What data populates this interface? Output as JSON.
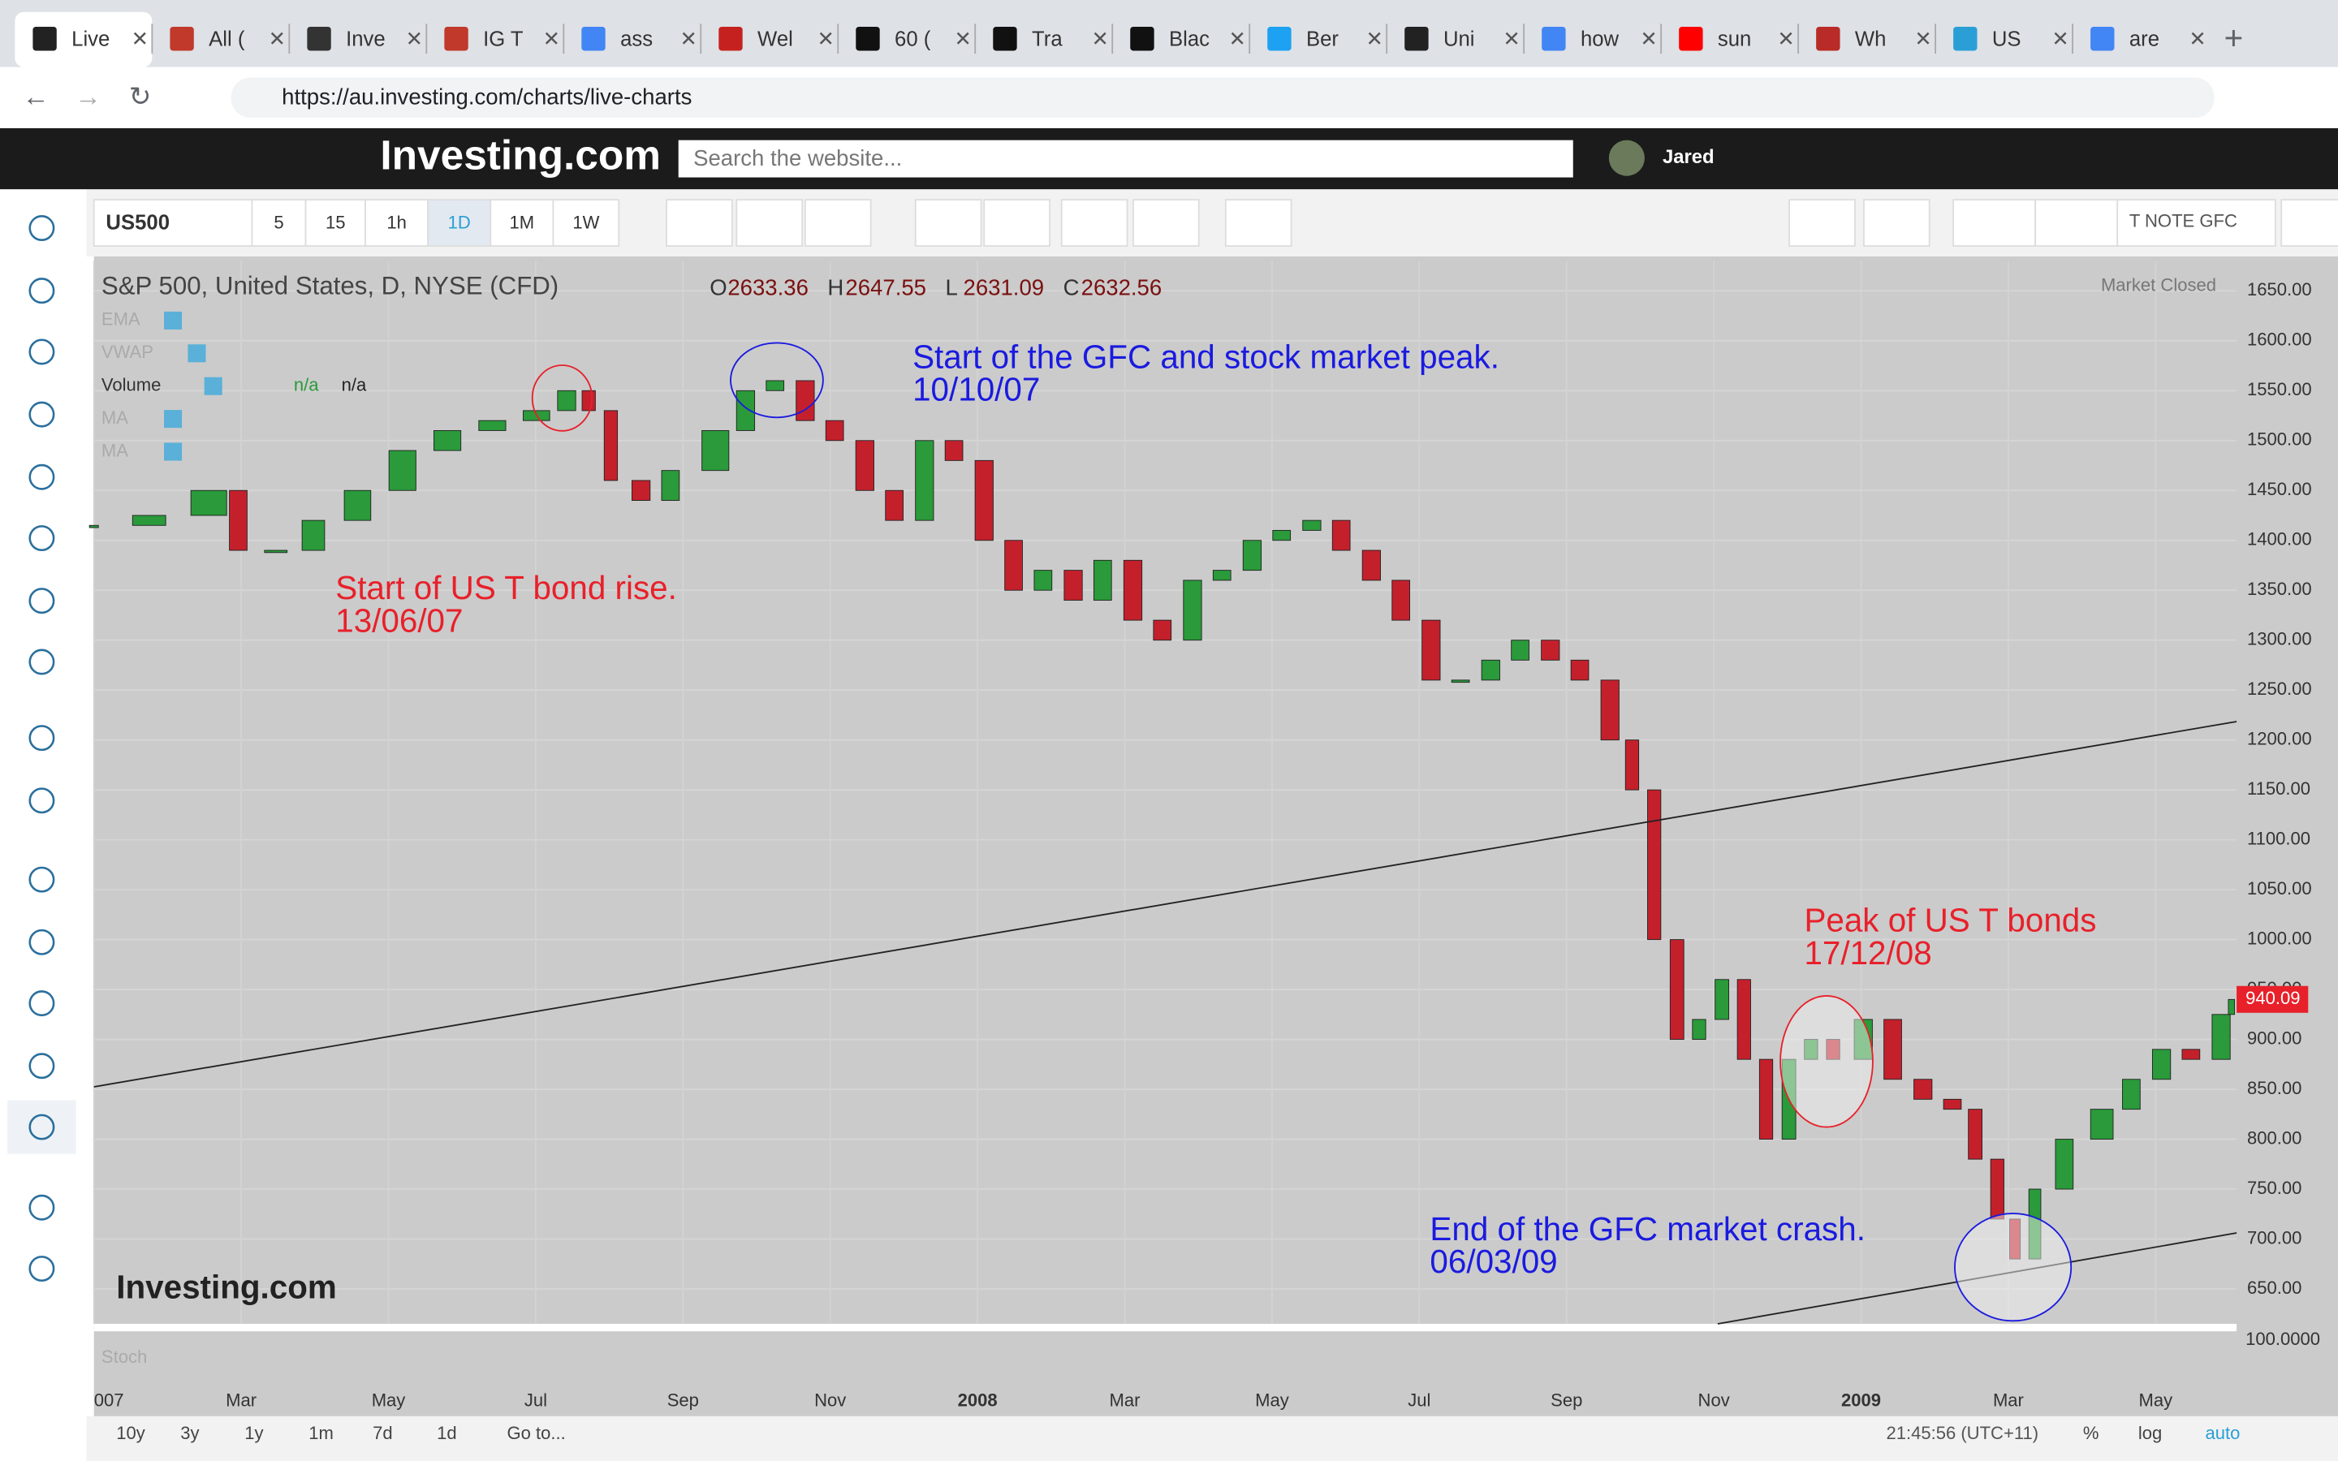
{
  "browser": {
    "tabs": [
      "Live",
      "All (",
      "Inve",
      "IG T",
      "ass",
      "Wel",
      "60 (",
      "Tra",
      "Blac",
      "Ber",
      "Uni",
      "how",
      "sun",
      "Wh",
      "US",
      "are"
    ],
    "url": "https://au.investing.com/charts/live-charts"
  },
  "site_header": {
    "logo": "Investing.com",
    "search_placeholder": "Search the website...",
    "user": "Jared"
  },
  "toolbar": {
    "symbol": "US500",
    "intervals": [
      "5",
      "15",
      "1h",
      "1D",
      "1M",
      "1W"
    ],
    "template": "T NOTE GFC"
  },
  "chart_data": {
    "type": "candlestick",
    "title": "S&P 500, United States, D, NYSE (CFD)",
    "ohlc": [
      {
        "label": "O",
        "value": 2633.36
      },
      {
        "label": "H",
        "value": 2647.55
      },
      {
        "label": "L",
        "value": 2631.09
      },
      {
        "label": "C",
        "value": 2632.56
      }
    ],
    "status": "Market Closed",
    "indicators": [
      "EMA",
      "VWAP",
      "Volume",
      "MA",
      "MA"
    ],
    "volume_values": [
      "n/a",
      "n/a"
    ],
    "x": [
      0,
      0.75,
      1.56,
      1.96,
      2.47,
      2.98,
      3.58,
      4.19,
      4.8,
      5.41,
      6.01,
      6.42,
      6.72,
      7.02,
      7.43,
      7.83,
      8.44,
      8.85,
      9.25,
      9.66,
      10.06,
      10.47,
      10.87,
      11.28,
      11.68,
      12.09,
      12.49,
      12.89,
      13.3,
      13.7,
      14.11,
      14.51,
      14.92,
      15.32,
      15.73,
      16.13,
      16.54,
      16.94,
      17.35,
      17.75,
      18.16,
      18.56,
      18.97,
      19.37,
      19.78,
      20.18,
      20.59,
      20.89,
      21.19,
      21.5,
      21.8,
      22.11,
      22.41,
      22.71,
      23.02,
      23.32,
      23.62,
      24.03,
      24.43,
      24.84,
      25.24,
      25.55,
      25.85,
      26.09,
      26.36,
      26.76,
      27.27,
      27.67,
      28.08,
      28.48,
      28.89,
      29.03
    ],
    "values": [
      1415,
      1425,
      1450,
      1390,
      1390,
      1420,
      1450,
      1490,
      1510,
      1520,
      1530,
      1550,
      1530,
      1460,
      1440,
      1470,
      1510,
      1550,
      1560,
      1520,
      1500,
      1450,
      1420,
      1500,
      1480,
      1400,
      1350,
      1370,
      1340,
      1380,
      1320,
      1300,
      1360,
      1370,
      1400,
      1410,
      1420,
      1390,
      1360,
      1320,
      1260,
      1260,
      1280,
      1300,
      1280,
      1260,
      1200,
      1150,
      1000,
      900,
      920,
      960,
      880,
      800,
      880,
      900,
      880,
      920,
      860,
      840,
      830,
      780,
      720,
      680,
      750,
      800,
      830,
      860,
      890,
      880,
      925,
      940
    ],
    "color_up": "#2a9a3a",
    "color_down": "#c4202c",
    "xlim": [
      0,
      29.1
    ],
    "xticks": [
      {
        "value": 0,
        "label": "007"
      },
      {
        "value": 2,
        "label": "Mar"
      },
      {
        "value": 4,
        "label": "May"
      },
      {
        "value": 6,
        "label": "Jul"
      },
      {
        "value": 8,
        "label": "Sep"
      },
      {
        "value": 10,
        "label": "Nov"
      },
      {
        "value": 12,
        "label": "2008"
      },
      {
        "value": 14,
        "label": "Mar"
      },
      {
        "value": 16,
        "label": "May"
      },
      {
        "value": 18,
        "label": "Jul"
      },
      {
        "value": 20,
        "label": "Sep"
      },
      {
        "value": 22,
        "label": "Nov"
      },
      {
        "value": 24,
        "label": "2009"
      },
      {
        "value": 26,
        "label": "Mar"
      },
      {
        "value": 28,
        "label": "May"
      }
    ],
    "ylim": [
      615,
      1680
    ],
    "yticks": [
      {
        "value": 650,
        "label": "650.00"
      },
      {
        "value": 700,
        "label": "700.00"
      },
      {
        "value": 750,
        "label": "750.00"
      },
      {
        "value": 800,
        "label": "800.00"
      },
      {
        "value": 850,
        "label": "850.00"
      },
      {
        "value": 900,
        "label": "900.00"
      },
      {
        "value": 950,
        "label": "950.00"
      },
      {
        "value": 1000,
        "label": "1000.00"
      },
      {
        "value": 1050,
        "label": "1050.00"
      },
      {
        "value": 1100,
        "label": "1100.00"
      },
      {
        "value": 1150,
        "label": "1150.00"
      },
      {
        "value": 1200,
        "label": "1200.00"
      },
      {
        "value": 1250,
        "label": "1250.00"
      },
      {
        "value": 1300,
        "label": "1300.00"
      },
      {
        "value": 1350,
        "label": "1350.00"
      },
      {
        "value": 1400,
        "label": "1400.00"
      },
      {
        "value": 1450,
        "label": "1450.00"
      },
      {
        "value": 1500,
        "label": "1500.00"
      },
      {
        "value": 1550,
        "label": "1550.00"
      },
      {
        "value": 1600,
        "label": "1600.00"
      },
      {
        "value": 1650,
        "label": "1650.00"
      }
    ],
    "grid": true,
    "last_price": 940.09,
    "annotations": [
      {
        "lines": [
          "Start of US T bond rise.",
          "13/06/07"
        ],
        "color": "#e8202a"
      },
      {
        "lines": [
          "Start of the GFC and stock market peak.",
          "10/10/07"
        ],
        "color": "#1a1ae0"
      },
      {
        "lines": [
          "Peak of US T bonds",
          "17/12/08"
        ],
        "color": "#e8202a"
      },
      {
        "lines": [
          "End of the GFC market crash.",
          "06/03/09"
        ],
        "color": "#1a1ae0"
      }
    ],
    "watermark": "Investing.com",
    "stoch": {
      "name": "Stoch",
      "ytick": {
        "value": 100,
        "label": "100.0000"
      }
    }
  },
  "bottom_bar": {
    "ranges": [
      "10y",
      "3y",
      "1y",
      "1m",
      "7d",
      "1d"
    ],
    "goto": "Go to...",
    "time": "21:45:56 (UTC+11)",
    "options": [
      "%",
      "log",
      "auto"
    ]
  }
}
